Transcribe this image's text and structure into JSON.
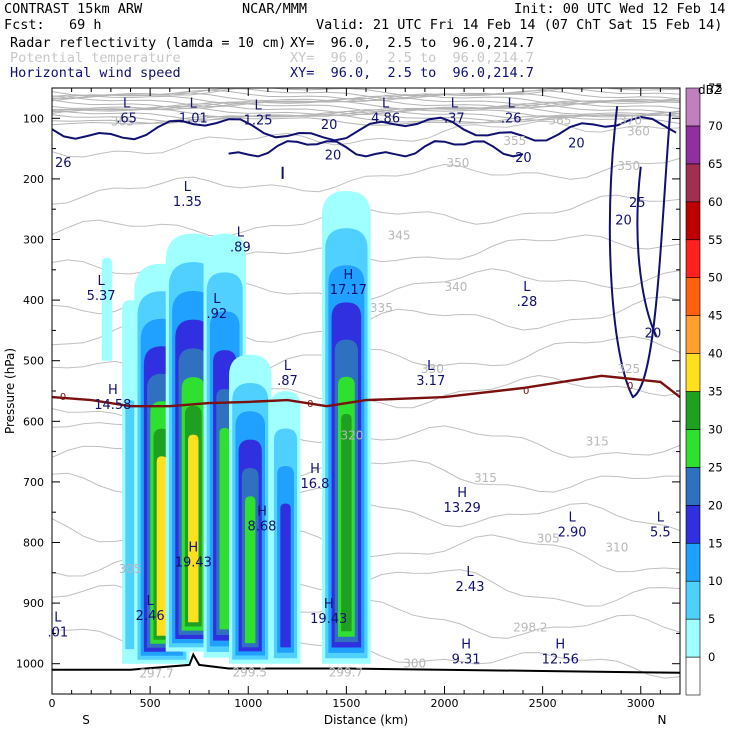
{
  "header": {
    "model": "CONTRAST 15km ARW",
    "org": "NCAR/MMM",
    "init": "Init: 00 UTC Wed 12 Feb 14",
    "fcst": "Fcst:   69 h",
    "valid": "Valid: 21 UTC Fri 14 Feb 14 (07 ChT Sat 15 Feb 14)",
    "fields": [
      {
        "name": "Radar reflectivity (lamda = 10 cm)",
        "xy": "XY=  96.0,  2.5 to  96.0,214.7",
        "color": "#000000"
      },
      {
        "name": "Potential temperature",
        "xy": "XY=  96.0,  2.5 to  96.0,214.7",
        "color": "#c8c8c8"
      },
      {
        "name": "Horizontal wind speed",
        "xy": "XY=  96.0,  2.5 to  96.0,214.7",
        "color": "#101070"
      }
    ]
  },
  "chart_data": {
    "type": "heatmap",
    "title": "",
    "xlabel": "Distance (km)",
    "ylabel": "Pressure (hPa)",
    "xlim": [
      0,
      3200
    ],
    "ylim": [
      1050,
      50
    ],
    "x_ticks": [
      "0",
      "500",
      "1000",
      "1500",
      "2000",
      "2500",
      "3000"
    ],
    "y_ticks": [
      "100",
      "200",
      "300",
      "400",
      "500",
      "600",
      "700",
      "800",
      "900",
      "1000"
    ],
    "x_end_labels": {
      "left": "S",
      "right": "N"
    },
    "colorbar": {
      "unit": "dBZ",
      "levels": [
        "0",
        "5",
        "10",
        "15",
        "20",
        "25",
        "30",
        "35",
        "40",
        "45",
        "50",
        "55",
        "60",
        "65",
        "70",
        "75"
      ],
      "colors": [
        "#ffffff",
        "#a0ffff",
        "#50d0ff",
        "#20a0ff",
        "#3030e0",
        "#3070c0",
        "#30e030",
        "#20a020",
        "#ffe020",
        "#ffa030",
        "#ff6010",
        "#ff2020",
        "#c00000",
        "#a03050",
        "#9030a0",
        "#c080c0"
      ]
    },
    "reflectivity_cores": [
      {
        "x": 280,
        "top": 330,
        "bottom": 500,
        "max_dbz": 5
      },
      {
        "x": 400,
        "top": 400,
        "bottom": 1000,
        "max_dbz": 10
      },
      {
        "x": 560,
        "top": 340,
        "bottom": 1000,
        "max_dbz": 40
      },
      {
        "x": 720,
        "top": 290,
        "bottom": 980,
        "max_dbz": 40
      },
      {
        "x": 880,
        "top": 290,
        "bottom": 990,
        "max_dbz": 30
      },
      {
        "x": 1010,
        "top": 490,
        "bottom": 1000,
        "max_dbz": 30
      },
      {
        "x": 1190,
        "top": 550,
        "bottom": 1000,
        "max_dbz": 20
      },
      {
        "x": 1500,
        "top": 220,
        "bottom": 1000,
        "max_dbz": 35
      }
    ],
    "freezing_level": [
      [
        0,
        560
      ],
      [
        200,
        565
      ],
      [
        400,
        575
      ],
      [
        600,
        575
      ],
      [
        800,
        570
      ],
      [
        1000,
        568
      ],
      [
        1200,
        565
      ],
      [
        1400,
        575
      ],
      [
        1600,
        565
      ],
      [
        2000,
        560
      ],
      [
        2400,
        545
      ],
      [
        2800,
        525
      ],
      [
        3100,
        535
      ],
      [
        3200,
        560
      ]
    ],
    "freezing_level_label": "0",
    "surface": [
      [
        0,
        1010
      ],
      [
        400,
        1010
      ],
      [
        700,
        1002
      ],
      [
        720,
        985
      ],
      [
        750,
        1002
      ],
      [
        900,
        1008
      ],
      [
        1500,
        1008
      ],
      [
        2500,
        1012
      ],
      [
        3200,
        1015
      ]
    ],
    "theta_labels": [
      "365",
      "370",
      "360",
      "355",
      "350",
      "345",
      "340",
      "335",
      "330",
      "325",
      "320",
      "315",
      "310",
      "305",
      "300",
      "297.7",
      "299.5",
      "298.2"
    ],
    "wind_labels": [
      "20",
      "25",
      "26"
    ],
    "extrema": [
      {
        "type": "L",
        "value": ".65"
      },
      {
        "type": "L",
        "value": "1.01"
      },
      {
        "type": "L",
        "value": "1.25"
      },
      {
        "type": "L",
        "value": "4.86"
      },
      {
        "type": "L",
        "value": ".37"
      },
      {
        "type": "L",
        "value": ".26"
      },
      {
        "type": "L",
        "value": "1.35"
      },
      {
        "type": "L",
        "value": ".89"
      },
      {
        "type": "H",
        "value": "17.17"
      },
      {
        "type": "L",
        "value": "5.37"
      },
      {
        "type": "L",
        "value": ".92"
      },
      {
        "type": "L",
        "value": ".28"
      },
      {
        "type": "L",
        "value": ".87"
      },
      {
        "type": "L",
        "value": "3.17"
      },
      {
        "type": "H",
        "value": "14.58"
      },
      {
        "type": "H",
        "value": "16.8"
      },
      {
        "type": "H",
        "value": "13.29"
      },
      {
        "type": "H",
        "value": "8.68"
      },
      {
        "type": "L",
        "value": "2.90"
      },
      {
        "type": "L",
        "value": "5.5"
      },
      {
        "type": "H",
        "value": "19.43"
      },
      {
        "type": "L",
        "value": "2.43"
      },
      {
        "type": "L",
        "value": "2.46"
      },
      {
        "type": "H",
        "value": "19.43"
      },
      {
        "type": "L",
        "value": ".01"
      },
      {
        "type": "H",
        "value": "9.31"
      },
      {
        "type": "H",
        "value": "12.56"
      }
    ]
  }
}
